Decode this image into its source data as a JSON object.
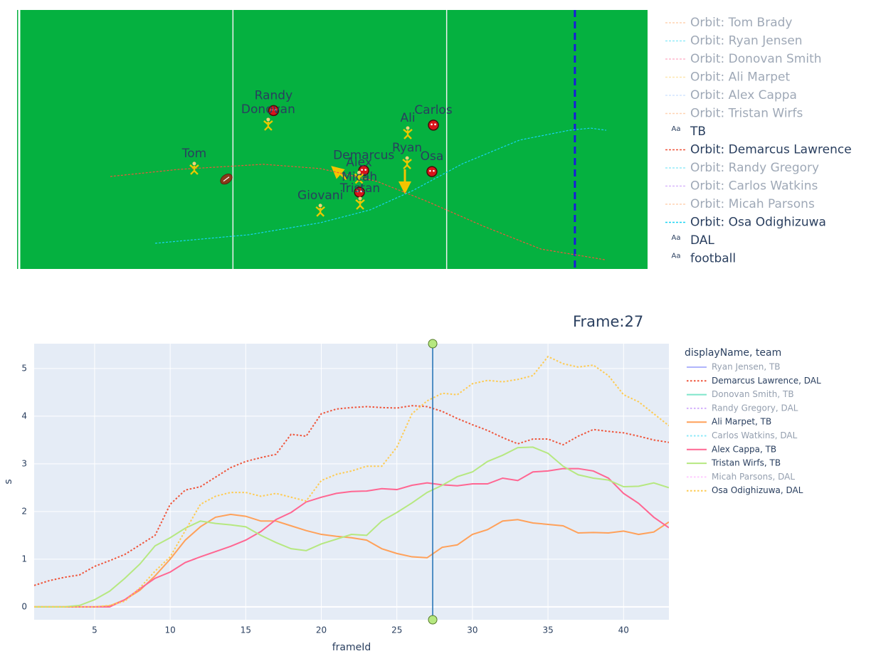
{
  "chart_data": [
    {
      "type": "field",
      "xlim": [
        0,
        29.5
      ],
      "ylim": [
        0,
        12.1
      ],
      "yard_lines": [
        0.1,
        10.1,
        20.1
      ],
      "line_of_scrimmage": 26.1,
      "players": [
        {
          "label": "Tom",
          "team": "TB",
          "x": 8.29,
          "y": 4.69
        },
        {
          "label": "Randy",
          "team": "DAL",
          "x": 12.0,
          "y": 7.4
        },
        {
          "label": "Donovan",
          "team": "TB",
          "x": 11.75,
          "y": 6.75
        },
        {
          "label": "Giovani",
          "team": "TB",
          "x": 14.19,
          "y": 2.73
        },
        {
          "label": "Demarcus",
          "team": "DAL",
          "x": 16.22,
          "y": 4.6
        },
        {
          "label": "Alex",
          "team": "TB",
          "x": 16.0,
          "y": 4.27
        },
        {
          "label": "Micah",
          "team": "DAL",
          "x": 16.02,
          "y": 3.59
        },
        {
          "label": "Tristan",
          "team": "TB",
          "x": 16.05,
          "y": 3.06
        },
        {
          "label": "Ali",
          "team": "TB",
          "x": 18.28,
          "y": 6.35
        },
        {
          "label": "Carlos",
          "team": "DAL",
          "x": 19.48,
          "y": 6.72
        },
        {
          "label": "Ryan",
          "team": "TB",
          "x": 18.25,
          "y": 4.95
        },
        {
          "label": "Osa",
          "team": "DAL",
          "x": 19.41,
          "y": 4.55
        }
      ],
      "football": {
        "x": 9.79,
        "y": 4.2
      },
      "legend": [
        {
          "name": "Orbit: Tom Brady",
          "color": "#FFA15A",
          "visible": false
        },
        {
          "name": "Orbit: Ryan Jensen",
          "color": "#19d3f3",
          "visible": false
        },
        {
          "name": "Orbit: Donovan Smith",
          "color": "#FF6692",
          "visible": false
        },
        {
          "name": "Orbit: Ali Marpet",
          "color": "#FECB52",
          "visible": false
        },
        {
          "name": "Orbit: Alex Cappa",
          "color": "#a0c8ff",
          "visible": false
        },
        {
          "name": "Orbit: Tristan Wirfs",
          "color": "#FFA15A",
          "visible": false
        },
        {
          "name": "TB",
          "icon": "Aa"
        },
        {
          "name": "Orbit: Demarcus Lawrence",
          "color": "#EF553B",
          "visible": true,
          "x": [
            4.36,
            7.53,
            11.52,
            14.19,
            16.85,
            19.18,
            21.84,
            24.51,
            27.51
          ],
          "y": [
            4.32,
            4.65,
            4.89,
            4.69,
            4.09,
            3.16,
            1.99,
            0.93,
            0.43
          ]
        },
        {
          "name": "Orbit: Randy Gregory",
          "color": "#19d3f3",
          "visible": false
        },
        {
          "name": "Orbit: Carlos Watkins",
          "color": "#ab63fa",
          "visible": false
        },
        {
          "name": "Orbit: Micah Parsons",
          "color": "#FFA15A",
          "visible": false
        },
        {
          "name": "Orbit: Osa Odighizuwa",
          "color": "#19d3f3",
          "visible": true,
          "x": [
            6.46,
            10.86,
            14.19,
            16.52,
            18.51,
            20.85,
            23.51,
            25.84,
            26.84,
            27.57
          ],
          "y": [
            1.2,
            1.6,
            2.16,
            2.76,
            3.66,
            4.92,
            6.02,
            6.48,
            6.58,
            6.48
          ]
        },
        {
          "name": "DAL",
          "icon": "Aa"
        },
        {
          "name": "football",
          "icon": "Aa"
        }
      ]
    },
    {
      "type": "line",
      "title": "Frame:27",
      "x_label": "frameId",
      "y_label": "s",
      "legend_title": "displayName, team",
      "xlim": [
        1,
        43
      ],
      "ylim": [
        -0.27,
        5.52
      ],
      "xticks": [
        5,
        10,
        15,
        20,
        25,
        30,
        35,
        40
      ],
      "yticks": [
        0,
        1,
        2,
        3,
        4,
        5
      ],
      "grid": true,
      "frame_line": 27.37,
      "x": [
        1,
        2,
        3,
        4,
        5,
        6,
        7,
        8,
        9,
        10,
        11,
        12,
        13,
        14,
        15,
        16,
        17,
        18,
        19,
        20,
        21,
        22,
        23,
        24,
        25,
        26,
        27,
        28,
        29,
        30,
        31,
        32,
        33,
        34,
        35,
        36,
        37,
        38,
        39,
        40,
        41,
        42,
        43
      ],
      "series": [
        {
          "name": "Ryan Jensen, TB",
          "color": "#636efa",
          "dash": false,
          "visible": false
        },
        {
          "name": "Demarcus Lawrence, DAL",
          "color": "#EF553B",
          "dash": true,
          "visible": true,
          "values": [
            0.45,
            0.55,
            0.62,
            0.67,
            0.85,
            0.97,
            1.1,
            1.3,
            1.5,
            2.15,
            2.45,
            2.52,
            2.72,
            2.92,
            3.05,
            3.13,
            3.2,
            3.62,
            3.58,
            4.05,
            4.15,
            4.18,
            4.2,
            4.18,
            4.17,
            4.22,
            4.2,
            4.1,
            3.95,
            3.82,
            3.7,
            3.55,
            3.42,
            3.52,
            3.52,
            3.4,
            3.58,
            3.72,
            3.68,
            3.65,
            3.58,
            3.5,
            3.45
          ]
        },
        {
          "name": "Donovan Smith, TB",
          "color": "#00cc96",
          "dash": false,
          "visible": false
        },
        {
          "name": "Randy Gregory, DAL",
          "color": "#ab63fa",
          "dash": true,
          "visible": false
        },
        {
          "name": "Ali Marpet, TB",
          "color": "#FFA15A",
          "dash": false,
          "visible": true,
          "values": [
            0,
            0,
            0,
            0,
            0,
            0.02,
            0.15,
            0.35,
            0.65,
            1.0,
            1.4,
            1.68,
            1.88,
            1.94,
            1.9,
            1.8,
            1.8,
            1.7,
            1.6,
            1.52,
            1.48,
            1.45,
            1.4,
            1.22,
            1.12,
            1.05,
            1.03,
            1.25,
            1.3,
            1.52,
            1.62,
            1.8,
            1.83,
            1.76,
            1.73,
            1.7,
            1.55,
            1.56,
            1.55,
            1.59,
            1.52,
            1.57,
            1.78
          ]
        },
        {
          "name": "Carlos Watkins, DAL",
          "color": "#19d3f3",
          "dash": true,
          "visible": false
        },
        {
          "name": "Alex Cappa, TB",
          "color": "#FF6692",
          "dash": false,
          "visible": true,
          "values": [
            0,
            0,
            0,
            0,
            0,
            0,
            0.15,
            0.38,
            0.6,
            0.73,
            0.93,
            1.05,
            1.16,
            1.27,
            1.4,
            1.58,
            1.83,
            1.98,
            2.2,
            2.3,
            2.38,
            2.42,
            2.43,
            2.48,
            2.46,
            2.55,
            2.6,
            2.56,
            2.54,
            2.58,
            2.58,
            2.7,
            2.65,
            2.83,
            2.85,
            2.9,
            2.9,
            2.85,
            2.7,
            2.38,
            2.17,
            1.88,
            1.66
          ]
        },
        {
          "name": "Tristan Wirfs, TB",
          "color": "#B6E880",
          "dash": false,
          "visible": true,
          "values": [
            0,
            0,
            0,
            0.03,
            0.15,
            0.33,
            0.6,
            0.9,
            1.28,
            1.45,
            1.65,
            1.8,
            1.75,
            1.72,
            1.68,
            1.5,
            1.35,
            1.22,
            1.18,
            1.32,
            1.42,
            1.52,
            1.5,
            1.8,
            1.98,
            2.18,
            2.4,
            2.55,
            2.73,
            2.83,
            3.05,
            3.18,
            3.34,
            3.35,
            3.22,
            2.95,
            2.77,
            2.7,
            2.66,
            2.52,
            2.53,
            2.6,
            2.5
          ]
        },
        {
          "name": "Micah Parsons, DAL",
          "color": "#FF97FF",
          "dash": true,
          "visible": false
        },
        {
          "name": "Osa Odighizuwa, DAL",
          "color": "#FECB52",
          "dash": true,
          "visible": true,
          "values": [
            0,
            0,
            0,
            0,
            0,
            0.03,
            0.12,
            0.4,
            0.75,
            1.05,
            1.6,
            2.15,
            2.32,
            2.4,
            2.4,
            2.32,
            2.38,
            2.3,
            2.22,
            2.65,
            2.78,
            2.85,
            2.95,
            2.95,
            3.35,
            4.05,
            4.32,
            4.48,
            4.45,
            4.68,
            4.75,
            4.72,
            4.77,
            4.85,
            5.25,
            5.1,
            5.03,
            5.07,
            4.85,
            4.45,
            4.3,
            4.05,
            3.8
          ]
        }
      ]
    }
  ]
}
